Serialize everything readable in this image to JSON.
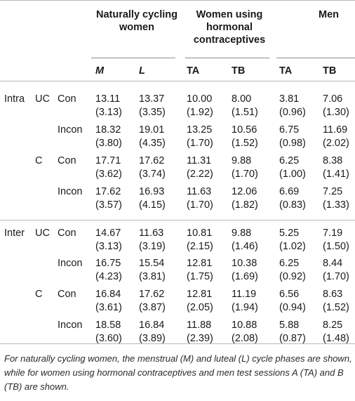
{
  "headers": {
    "group1": "Naturally cycling women",
    "group2": "Women using hormonal contraceptives",
    "group3": "Men",
    "sub": [
      "M",
      "L",
      "TA",
      "TB",
      "TA",
      "TB"
    ]
  },
  "rows": [
    {
      "level1": "Intra",
      "level2": "UC",
      "level3": "Con",
      "means": [
        "13.11",
        "13.37",
        "10.00",
        "8.00",
        "3.81",
        "7.06"
      ],
      "sds": [
        "(3.13)",
        "(3.35)",
        "(1.92)",
        "(1.51)",
        "(0.96)",
        "(1.30)"
      ]
    },
    {
      "level1": "",
      "level2": "",
      "level3": "Incon",
      "means": [
        "18.32",
        "19.01",
        "13.25",
        "10.56",
        "6.75",
        "11.69"
      ],
      "sds": [
        "(3.80)",
        "(4.35)",
        "(1.70)",
        "(1.52)",
        "(0.98)",
        "(2.02)"
      ]
    },
    {
      "level1": "",
      "level2": "C",
      "level3": "Con",
      "means": [
        "17.71",
        "17.62",
        "11.31",
        "9.88",
        "6.25",
        "8.38"
      ],
      "sds": [
        "(3.62)",
        "(3.74)",
        "(2.22)",
        "(1.70)",
        "(1.00)",
        "(1.41)"
      ]
    },
    {
      "level1": "",
      "level2": "",
      "level3": "Incon",
      "means": [
        "17.62",
        "16.93",
        "11.63",
        "12.06",
        "6.69",
        "7.25"
      ],
      "sds": [
        "(3.57)",
        "(4.15)",
        "(1.70)",
        "(1.82)",
        "(0.83)",
        "(1.33)"
      ]
    },
    {
      "level1": "Inter",
      "level2": "UC",
      "level3": "Con",
      "means": [
        "14.67",
        "11.63",
        "10.81",
        "9.88",
        "5.25",
        "7.19"
      ],
      "sds": [
        "(3.13)",
        "(3.19)",
        "(2.15)",
        "(1.46)",
        "(1.02)",
        "(1.50)"
      ]
    },
    {
      "level1": "",
      "level2": "",
      "level3": "Incon",
      "means": [
        "16.75",
        "15.54",
        "12.81",
        "10.38",
        "6.25",
        "8.44"
      ],
      "sds": [
        "(4.23)",
        "(3.81)",
        "(1.75)",
        "(1.69)",
        "(0.92)",
        "(1.70)"
      ]
    },
    {
      "level1": "",
      "level2": "C",
      "level3": "Con",
      "means": [
        "16.84",
        "17.62",
        "12.81",
        "11.19",
        "6.56",
        "8.63"
      ],
      "sds": [
        "(3.61)",
        "(3.87)",
        "(2.05)",
        "(1.94)",
        "(0.94)",
        "(1.52)"
      ]
    },
    {
      "level1": "",
      "level2": "",
      "level3": "Incon",
      "means": [
        "18.58",
        "16.84",
        "11.88",
        "10.88",
        "5.88",
        "8.25"
      ],
      "sds": [
        "(3.60)",
        "(3.89)",
        "(2.39)",
        "(2.08)",
        "(0.87)",
        "(1.48)"
      ]
    }
  ],
  "footnote": "For naturally cycling women, the menstrual (M) and luteal (L) cycle phases are shown, while for women using hormonal contraceptives and men test sessions A (TA) and B (TB) are shown."
}
